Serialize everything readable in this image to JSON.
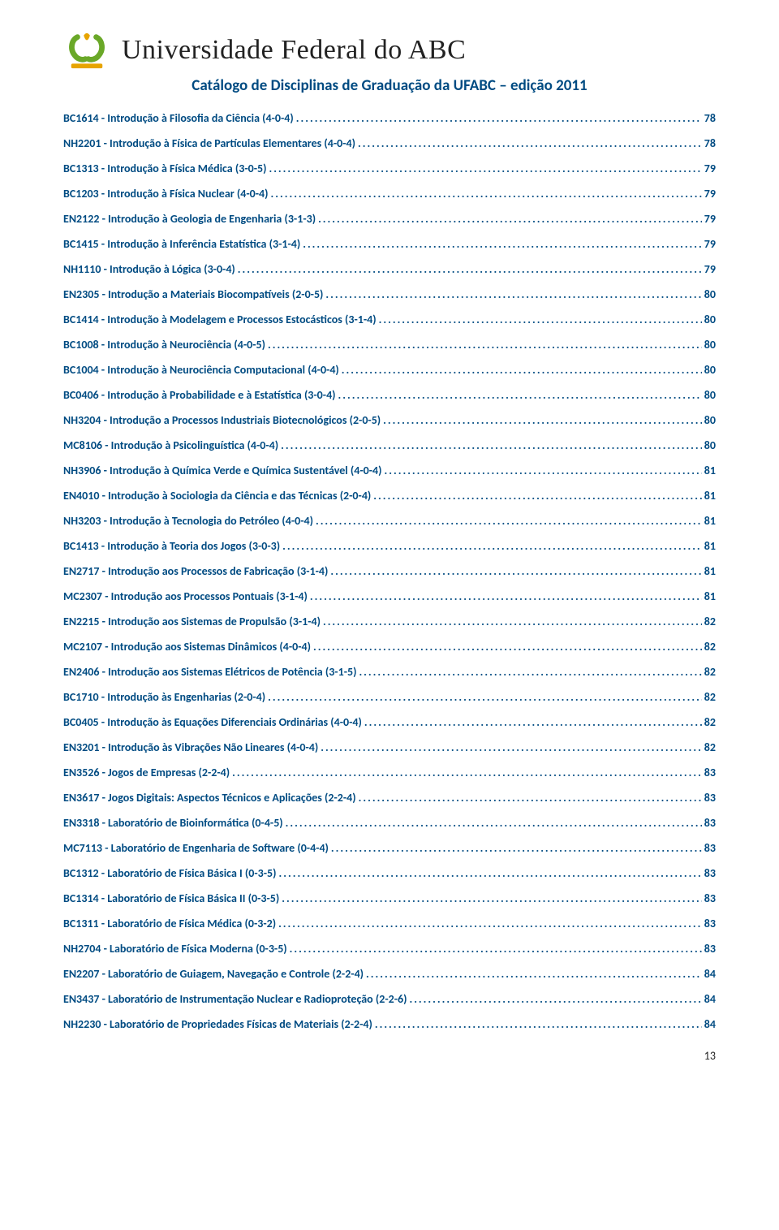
{
  "colors": {
    "link": "#004b82",
    "text": "#222222",
    "logoGreen": "#6aa828",
    "logoYellow": "#e7a400",
    "background": "#ffffff"
  },
  "typography": {
    "uniNameFont": "Georgia, serif",
    "uniNameSizePt": 26,
    "subtitleSizePt": 14,
    "tocSizePt": 10.5,
    "tocWeight": "700"
  },
  "header": {
    "universityName": "Universidade Federal do ABC",
    "subtitle": "Catálogo de Disciplinas de Graduação da UFABC – edição 2011"
  },
  "toc": [
    {
      "title": "BC1614 - Introdução à Filosofia da Ciência (4-0-4)",
      "page": "78"
    },
    {
      "title": "NH2201 - Introdução à Física de Partículas Elementares (4-0-4)",
      "page": "78"
    },
    {
      "title": "BC1313 - Introdução à Física Médica (3-0-5)",
      "page": "79"
    },
    {
      "title": "BC1203 - Introdução à Física Nuclear (4-0-4)",
      "page": "79"
    },
    {
      "title": "EN2122 - Introdução à Geologia de Engenharia (3-1-3)",
      "page": "79"
    },
    {
      "title": "BC1415 - Introdução à Inferência Estatística (3-1-4)",
      "page": "79"
    },
    {
      "title": "NH1110 - Introdução à Lógica (3-0-4)",
      "page": "79"
    },
    {
      "title": "EN2305 - Introdução a Materiais Biocompatíveis (2-0-5)",
      "page": "80"
    },
    {
      "title": "BC1414 - Introdução à Modelagem e Processos Estocásticos (3-1-4)",
      "page": "80"
    },
    {
      "title": "BC1008 - Introdução à Neurociência (4-0-5)",
      "page": "80"
    },
    {
      "title": "BC1004 - Introdução à Neurociência Computacional (4-0-4)",
      "page": "80"
    },
    {
      "title": "BC0406 - Introdução à Probabilidade e à Estatística (3-0-4)",
      "page": "80"
    },
    {
      "title": "NH3204 - Introdução a Processos Industriais Biotecnológicos (2-0-5)",
      "page": "80"
    },
    {
      "title": "MC8106 - Introdução à Psicolinguística (4-0-4)",
      "page": "80"
    },
    {
      "title": "NH3906 - Introdução à Química Verde e Química Sustentável (4-0-4)",
      "page": "81"
    },
    {
      "title": "EN4010 - Introdução à Sociologia da Ciência e das Técnicas (2-0-4)",
      "page": "81"
    },
    {
      "title": "NH3203 - Introdução à Tecnologia do Petróleo (4-0-4)",
      "page": "81"
    },
    {
      "title": "BC1413 - Introdução à Teoria dos Jogos (3-0-3)",
      "page": "81"
    },
    {
      "title": "EN2717 - Introdução aos Processos de Fabricação (3-1-4)",
      "page": "81"
    },
    {
      "title": "MC2307 - Introdução aos Processos Pontuais (3-1-4)",
      "page": "81"
    },
    {
      "title": "EN2215 - Introdução aos Sistemas de Propulsão (3-1-4)",
      "page": "82"
    },
    {
      "title": "MC2107 - Introdução aos Sistemas Dinâmicos (4-0-4)",
      "page": "82"
    },
    {
      "title": "EN2406 - Introdução aos Sistemas Elétricos de Potência (3-1-5)",
      "page": "82"
    },
    {
      "title": "BC1710 - Introdução às Engenharias (2-0-4)",
      "page": "82"
    },
    {
      "title": "BC0405 - Introdução às Equações Diferenciais Ordinárias (4-0-4)",
      "page": "82"
    },
    {
      "title": "EN3201 - Introdução às Vibrações Não Lineares (4-0-4)",
      "page": "82"
    },
    {
      "title": "EN3526 - Jogos de Empresas (2-2-4)",
      "page": "83"
    },
    {
      "title": "EN3617 - Jogos Digitais: Aspectos Técnicos e Aplicações (2-2-4)",
      "page": "83"
    },
    {
      "title": "EN3318 - Laboratório de Bioinformática (0-4-5)",
      "page": "83"
    },
    {
      "title": "MC7113 - Laboratório de Engenharia de Software (0-4-4)",
      "page": "83"
    },
    {
      "title": "BC1312 - Laboratório de Física Básica I (0-3-5)",
      "page": "83"
    },
    {
      "title": "BC1314 - Laboratório de Física Básica II (0-3-5)",
      "page": "83"
    },
    {
      "title": "BC1311 - Laboratório de Física Médica (0-3-2)",
      "page": "83"
    },
    {
      "title": "NH2704 - Laboratório de Física Moderna (0-3-5)",
      "page": "83"
    },
    {
      "title": "EN2207 - Laboratório de Guiagem, Navegação e Controle (2-2-4)",
      "page": "84"
    },
    {
      "title": "EN3437 - Laboratório de Instrumentação Nuclear e Radioproteção (2-2-6)",
      "page": "84"
    },
    {
      "title": "NH2230 - Laboratório de Propriedades Físicas de Materiais (2-2-4)",
      "page": "84"
    }
  ],
  "pageNumber": "13"
}
